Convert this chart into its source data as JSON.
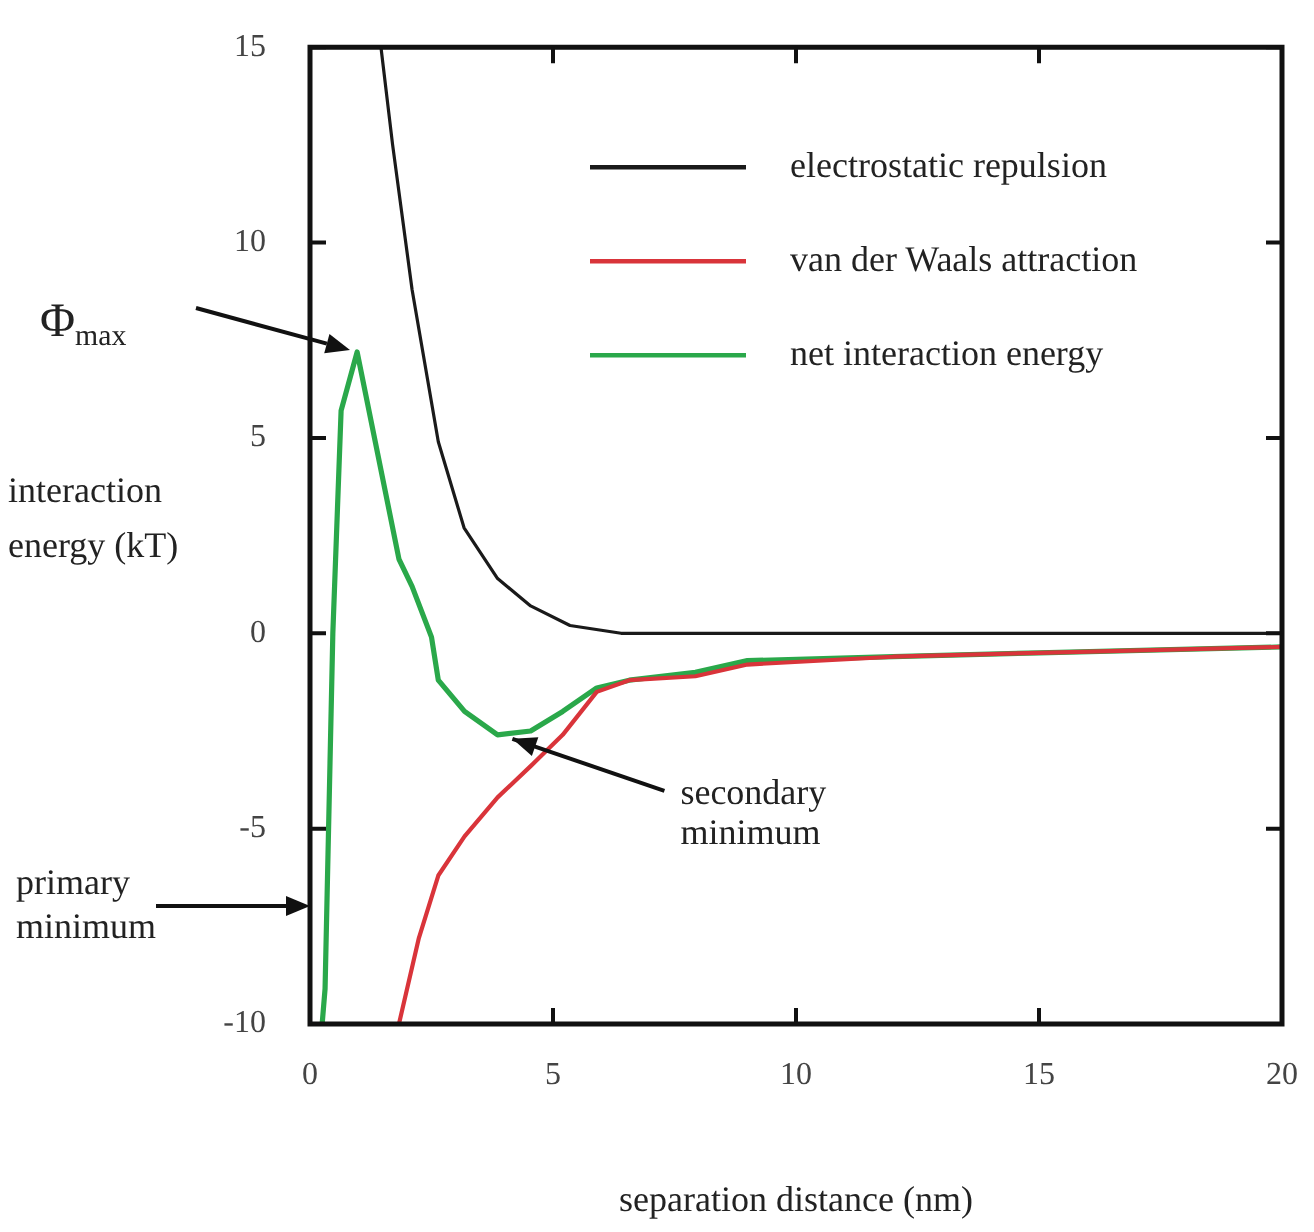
{
  "chart_data": {
    "type": "line",
    "xlabel": "separation distance (nm)",
    "ylabel": "interaction energy (kT)",
    "xlim": [
      0,
      20
    ],
    "ylim": [
      -10,
      15
    ],
    "xticks": [
      0,
      5,
      10,
      15,
      20
    ],
    "yticks": [
      -10,
      -5,
      0,
      5,
      10,
      15
    ],
    "legend": "top right",
    "marker": "none",
    "line_style": "solid",
    "series": [
      {
        "name": "electrostatic repulsion",
        "color": "#1a1a1a",
        "x": [
          1.46,
          1.7,
          2.1,
          2.64,
          3.17,
          3.86,
          4.54,
          5.35,
          6.4,
          10,
          15,
          20
        ],
        "values": [
          15,
          12.5,
          8.8,
          4.9,
          2.7,
          1.4,
          0.7,
          0.2,
          0,
          0,
          0,
          0
        ]
      },
      {
        "name": "van der Waals attraction",
        "color": "#d9343a",
        "x": [
          1.83,
          2.24,
          2.64,
          3.18,
          3.86,
          4.54,
          5.2,
          5.9,
          6.57,
          7.93,
          9,
          12,
          15,
          20
        ],
        "values": [
          -10,
          -7.8,
          -6.2,
          -5.2,
          -4.2,
          -3.4,
          -2.6,
          -1.5,
          -1.2,
          -1.1,
          -0.8,
          -0.6,
          -0.5,
          -0.35
        ]
      },
      {
        "name": "net interaction energy",
        "color": "#2aa84a",
        "x": [
          0.25,
          0.31,
          0.47,
          0.64,
          0.97,
          1.83,
          2.1,
          2.5,
          2.64,
          3.18,
          3.86,
          4.54,
          5.2,
          5.9,
          6.57,
          7.93,
          9,
          12,
          15,
          20
        ],
        "values": [
          -10,
          -9.1,
          0,
          5.7,
          7.2,
          1.9,
          1.2,
          -0.1,
          -1.2,
          -2,
          -2.6,
          -2.5,
          -2,
          -1.4,
          -1.2,
          -1,
          -0.7,
          -0.6,
          -0.5,
          -0.35
        ]
      }
    ],
    "annotations": [
      "Φ$_{max}$",
      "primary minimum",
      {
        "text": "secondary minimum",
        "x": 4,
        "y": -2.6
      }
    ]
  }
}
